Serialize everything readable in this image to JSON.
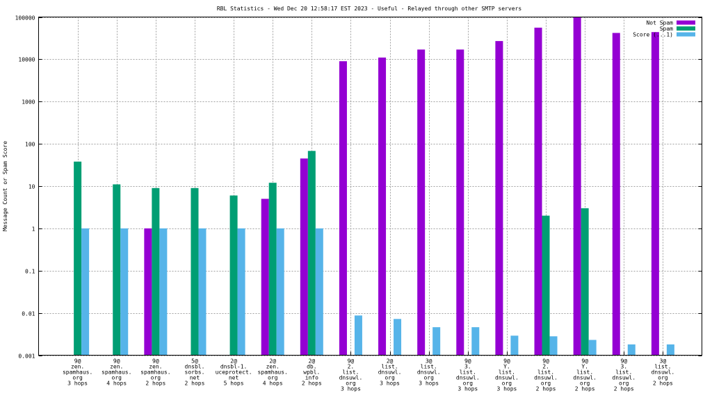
{
  "chart_data": {
    "type": "bar",
    "title": "RBL Statistics - Wed Dec 20 12:58:17 EST 2023 - Useful - Relayed through other SMTP servers",
    "xlabel": "",
    "ylabel": "Message Count or Spam Score",
    "yscale": "log",
    "ylim": [
      0.001,
      100000
    ],
    "yticks": [
      {
        "value": 0.001,
        "label": "0.001"
      },
      {
        "value": 0.01,
        "label": "0.01"
      },
      {
        "value": 0.1,
        "label": "0.1"
      },
      {
        "value": 1,
        "label": "1"
      },
      {
        "value": 10,
        "label": "10"
      },
      {
        "value": 100,
        "label": "100"
      },
      {
        "value": 1000,
        "label": "1000"
      },
      {
        "value": 10000,
        "label": "10000"
      },
      {
        "value": 100000,
        "label": "100000"
      }
    ],
    "grid": true,
    "legend_position": "top-right",
    "categories": [
      [
        "9@",
        "zen.",
        "spamhaus.",
        "org",
        "3 hops"
      ],
      [
        "9@",
        "zen.",
        "spamhaus.",
        "org",
        "4 hops"
      ],
      [
        "9@",
        "zen.",
        "spamhaus.",
        "org",
        "2 hops"
      ],
      [
        "5@",
        "dnsbl.",
        "sorbs.",
        "net",
        "2 hops"
      ],
      [
        "2@",
        "dnsbl-1.",
        "uceprotect.",
        "net",
        "5 hops"
      ],
      [
        "2@",
        "zen.",
        "spamhaus.",
        "org",
        "4 hops"
      ],
      [
        "2@",
        "db.",
        "wpbl.",
        "info",
        "2 hops"
      ],
      [
        "9@",
        "2.",
        "list.",
        "dnsuwl.",
        "org",
        "3 hops"
      ],
      [
        "2@",
        "list.",
        "dnsuwl.",
        "org",
        "3 hops"
      ],
      [
        "3@",
        "list.",
        "dnsuwl.",
        "org",
        "3 hops"
      ],
      [
        "9@",
        "3.",
        "list.",
        "dnsuwl.",
        "org",
        "3 hops"
      ],
      [
        "9@",
        "Y.",
        "list.",
        "dnsuwl.",
        "org",
        "3 hops"
      ],
      [
        "9@",
        "2.",
        "list.",
        "dnsuwl.",
        "org",
        "2 hops"
      ],
      [
        "9@",
        "Y.",
        "list.",
        "dnsuwl.",
        "org",
        "2 hops"
      ],
      [
        "9@",
        "3.",
        "list.",
        "dnsuwl.",
        "org",
        "2 hops"
      ],
      [
        "3@",
        "list.",
        "dnsuwl.",
        "org",
        "2 hops"
      ]
    ],
    "series": [
      {
        "name": "Not Spam",
        "color": "#9400d3",
        "values": [
          null,
          null,
          1,
          null,
          null,
          5,
          45,
          9000,
          11000,
          17000,
          17000,
          27000,
          56000,
          100000,
          42000,
          44000
        ]
      },
      {
        "name": "Spam",
        "color": "#009e73",
        "values": [
          38,
          11,
          9,
          9,
          6,
          12,
          68,
          null,
          null,
          null,
          null,
          null,
          2,
          3,
          null,
          null
        ]
      },
      {
        "name": "Score (...1)",
        "color": "#56b4e9",
        "values": [
          1,
          1,
          1,
          1,
          1,
          1,
          1,
          0.0087,
          0.0072,
          0.0046,
          0.0046,
          0.0029,
          0.0028,
          0.0023,
          0.0018,
          0.0018
        ]
      }
    ]
  }
}
